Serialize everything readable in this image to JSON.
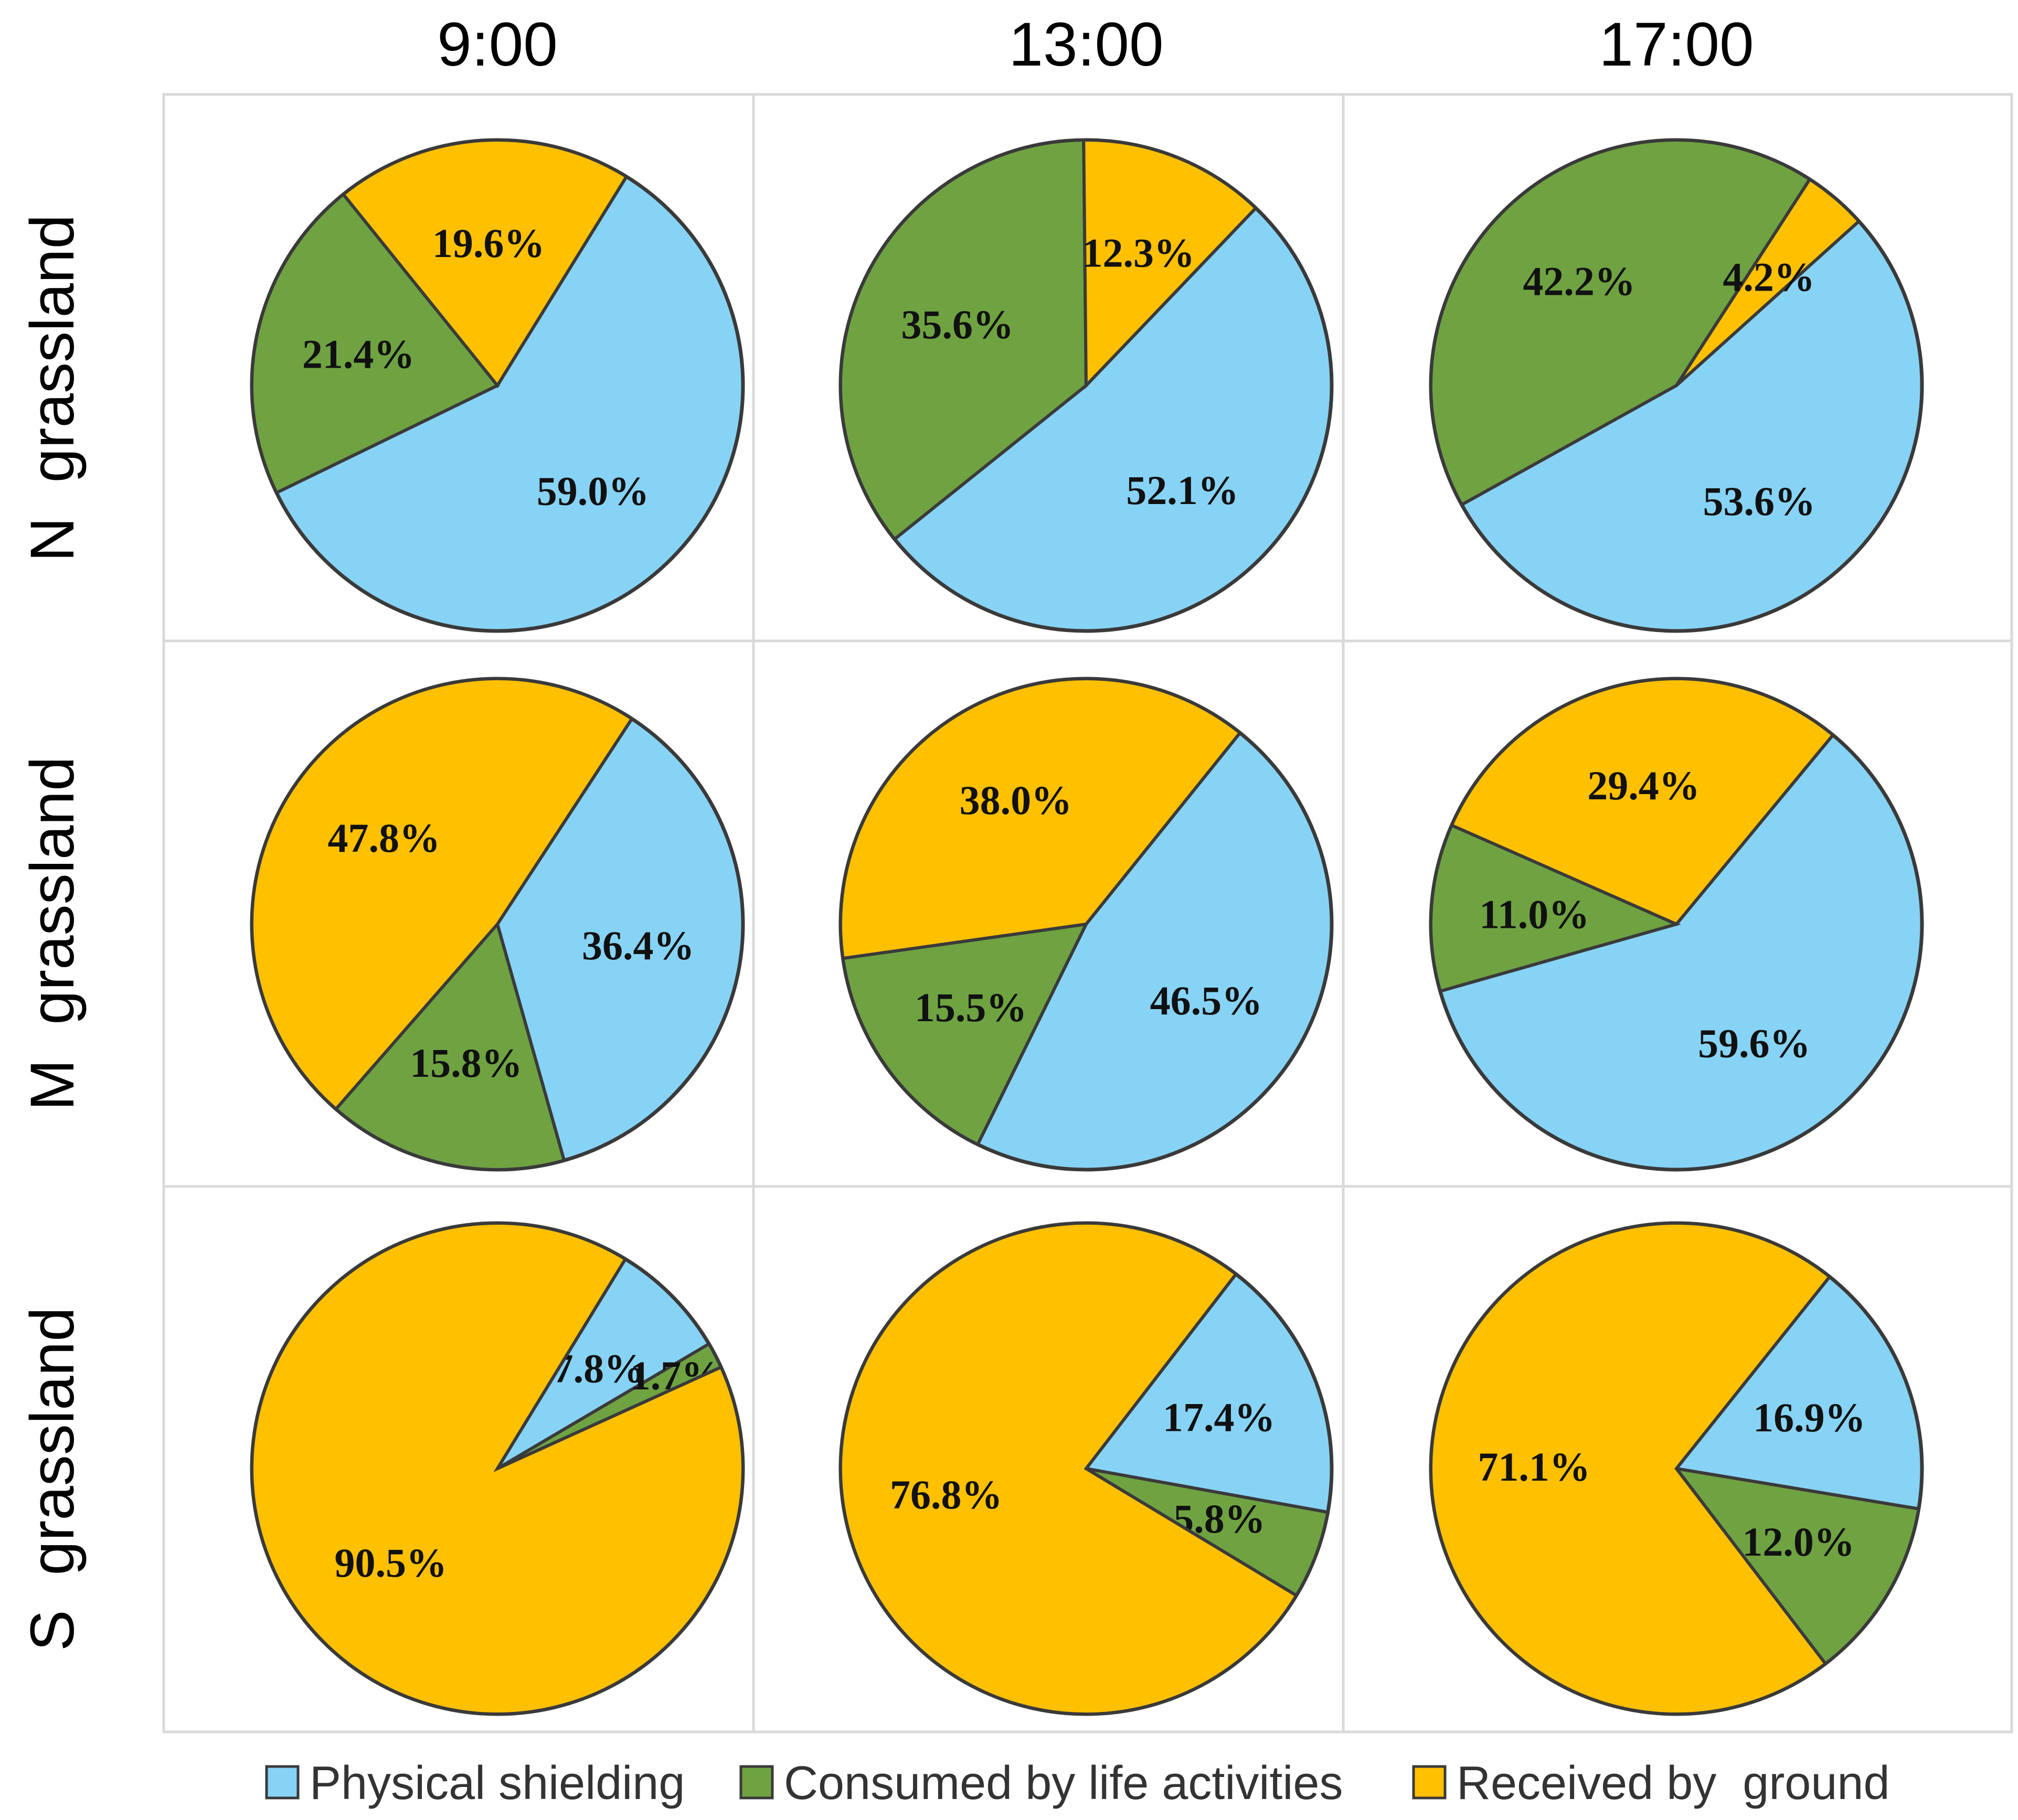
{
  "chart_data": {
    "type": "pie",
    "columns": [
      "9:00",
      "13:00",
      "17:00"
    ],
    "rows": [
      "N  grassland",
      "M  grassland",
      "S  grassland"
    ],
    "legend": [
      {
        "name": "Physical shielding",
        "color": "#87D3F5"
      },
      {
        "name": "Consumed by life activities",
        "color": "#6FA342"
      },
      {
        "name": "Received by  ground",
        "color": "#FFC000"
      }
    ],
    "pies": [
      {
        "row": "N  grassland",
        "time": "9:00",
        "values": [
          59.0,
          21.4,
          19.6
        ],
        "labels": [
          "59.0%",
          "21.4%",
          "19.6%"
        ],
        "start_angle": 58.3
      },
      {
        "row": "N  grassland",
        "time": "13:00",
        "values": [
          52.1,
          35.6,
          12.3
        ],
        "labels": [
          "52.1%",
          "35.6%",
          "12.3%"
        ],
        "start_angle": 46.3
      },
      {
        "row": "N  grassland",
        "time": "17:00",
        "values": [
          53.6,
          42.2,
          4.2
        ],
        "labels": [
          "53.6%",
          "42.2%",
          "4.2%"
        ],
        "start_angle": 42.0
      },
      {
        "row": "M  grassland",
        "time": "9:00",
        "values": [
          36.4,
          15.8,
          47.8
        ],
        "labels": [
          "36.4%",
          "15.8%",
          "47.8%"
        ],
        "start_angle": 56.8
      },
      {
        "row": "M  grassland",
        "time": "13:00",
        "values": [
          46.5,
          15.5,
          38.0
        ],
        "labels": [
          "46.5%",
          "15.5%",
          "38.0%"
        ],
        "start_angle": 51.2
      },
      {
        "row": "M  grassland",
        "time": "17:00",
        "values": [
          59.6,
          11.0,
          29.4
        ],
        "labels": [
          "59.6%",
          "11.0%",
          "29.4%"
        ],
        "start_angle": 50.4
      },
      {
        "row": "S  grassland",
        "time": "9:00",
        "values": [
          7.8,
          1.7,
          90.5
        ],
        "labels": [
          "7.8%",
          "1.7%",
          "90.5%"
        ],
        "start_angle": 58.6
      },
      {
        "row": "S  grassland",
        "time": "13:00",
        "values": [
          17.4,
          5.8,
          76.8
        ],
        "labels": [
          "17.4%",
          "5.8%",
          "76.8%"
        ],
        "start_angle": 52.4
      },
      {
        "row": "S  grassland",
        "time": "17:00",
        "values": [
          16.9,
          12.0,
          71.1
        ],
        "labels": [
          "16.9%",
          "12.0%",
          "71.1%"
        ],
        "start_angle": 51.4
      }
    ]
  }
}
